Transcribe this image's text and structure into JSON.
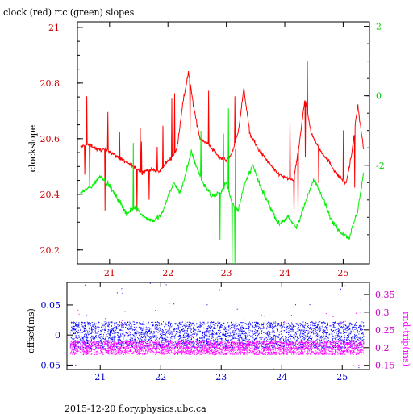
{
  "page": {
    "title": "clock (red) rtc (green) slopes",
    "footer": "2015-12-20 flory.physics.ubc.ca"
  },
  "colors": {
    "clock": "#ff0000",
    "rtc": "#00ee00",
    "offset": "#0000ff",
    "rndtrip": "#ff00ff",
    "axis": "#000000",
    "text": "#000000"
  },
  "chart_data": [
    {
      "type": "line",
      "title": "clock (red) rtc (green) slopes",
      "ylabel": "clockslope",
      "xlim": [
        20.45,
        25.45
      ],
      "ylim": [
        20.15,
        21.02
      ],
      "y2lim": [
        -4.84,
        2.13
      ],
      "x_ticks": [
        21,
        22,
        23,
        24,
        25
      ],
      "y_ticks": [
        20.2,
        20.4,
        20.6,
        20.8,
        21
      ],
      "y_tick_labels": [
        "20.2",
        "20.4",
        "20.6",
        "20.8",
        "21"
      ],
      "y2_ticks": [
        -2,
        0,
        2
      ],
      "y2_tick_labels": [
        "-2",
        "0",
        "2"
      ],
      "series": [
        {
          "name": "clock",
          "axis": "left",
          "x": [
            20.5,
            20.65,
            20.8,
            20.95,
            21.1,
            21.25,
            21.4,
            21.55,
            21.7,
            21.85,
            21.95,
            22.05,
            22.15,
            22.25,
            22.35,
            22.45,
            22.55,
            22.7,
            22.85,
            23.0,
            23.1,
            23.2,
            23.3,
            23.4,
            23.55,
            23.7,
            23.85,
            24.0,
            24.15,
            24.25,
            24.35,
            24.45,
            24.6,
            24.75,
            24.9,
            25.05,
            25.15,
            25.25,
            25.35
          ],
          "y": [
            20.57,
            20.58,
            20.56,
            20.56,
            20.54,
            20.52,
            20.5,
            20.48,
            20.49,
            20.48,
            20.51,
            20.53,
            20.56,
            20.72,
            20.84,
            20.7,
            20.6,
            20.58,
            20.54,
            20.52,
            20.55,
            20.62,
            20.78,
            20.62,
            20.56,
            20.52,
            20.48,
            20.46,
            20.45,
            20.58,
            20.75,
            20.62,
            20.56,
            20.52,
            20.47,
            20.44,
            20.55,
            20.72,
            20.56
          ]
        },
        {
          "name": "rtc",
          "axis": "right",
          "x": [
            20.5,
            20.7,
            20.85,
            21.0,
            21.15,
            21.3,
            21.45,
            21.6,
            21.75,
            21.9,
            22.0,
            22.1,
            22.2,
            22.3,
            22.4,
            22.5,
            22.6,
            22.75,
            22.9,
            23.0,
            23.1,
            23.2,
            23.3,
            23.45,
            23.6,
            23.75,
            23.9,
            24.05,
            24.2,
            24.35,
            24.5,
            24.65,
            24.8,
            24.95,
            25.1,
            25.25,
            25.35
          ],
          "y": [
            -2.8,
            -2.6,
            -2.3,
            -2.6,
            -3.0,
            -3.4,
            -3.2,
            -3.5,
            -3.6,
            -3.4,
            -2.9,
            -2.5,
            -2.8,
            -2.3,
            -1.6,
            -2.1,
            -2.5,
            -2.9,
            -2.8,
            -2.5,
            -3.1,
            -3.3,
            -2.6,
            -2.0,
            -2.7,
            -3.2,
            -3.7,
            -3.5,
            -3.8,
            -3.1,
            -2.4,
            -2.9,
            -3.6,
            -3.9,
            -4.1,
            -3.3,
            -2.2
          ]
        }
      ]
    },
    {
      "type": "scatter",
      "ylabel": "offset(ms)",
      "y2label": "rnd-trip(ms)",
      "xlim": [
        20.45,
        25.45
      ],
      "ylim": [
        -0.0575,
        0.0875
      ],
      "y2lim": [
        0.138,
        0.384
      ],
      "x_ticks": [
        21,
        22,
        23,
        24,
        25
      ],
      "x_tick_labels": [
        "21",
        "22",
        "23",
        "24",
        "25"
      ],
      "y_ticks": [
        -0.05,
        0,
        0.05
      ],
      "y_tick_labels": [
        "-0.05",
        "0",
        "0.05"
      ],
      "y2_ticks": [
        0.15,
        0.2,
        0.25,
        0.3,
        0.35
      ],
      "y2_tick_labels": [
        "0.15",
        "0.2",
        "0.25",
        "0.3",
        "0.35"
      ],
      "series": [
        {
          "name": "offset",
          "axis": "left",
          "band_center": 0.0,
          "band_halfwidth": 0.022
        },
        {
          "name": "rnd-trip",
          "axis": "right",
          "band_center": 0.2,
          "band_halfwidth": 0.02
        }
      ]
    }
  ]
}
